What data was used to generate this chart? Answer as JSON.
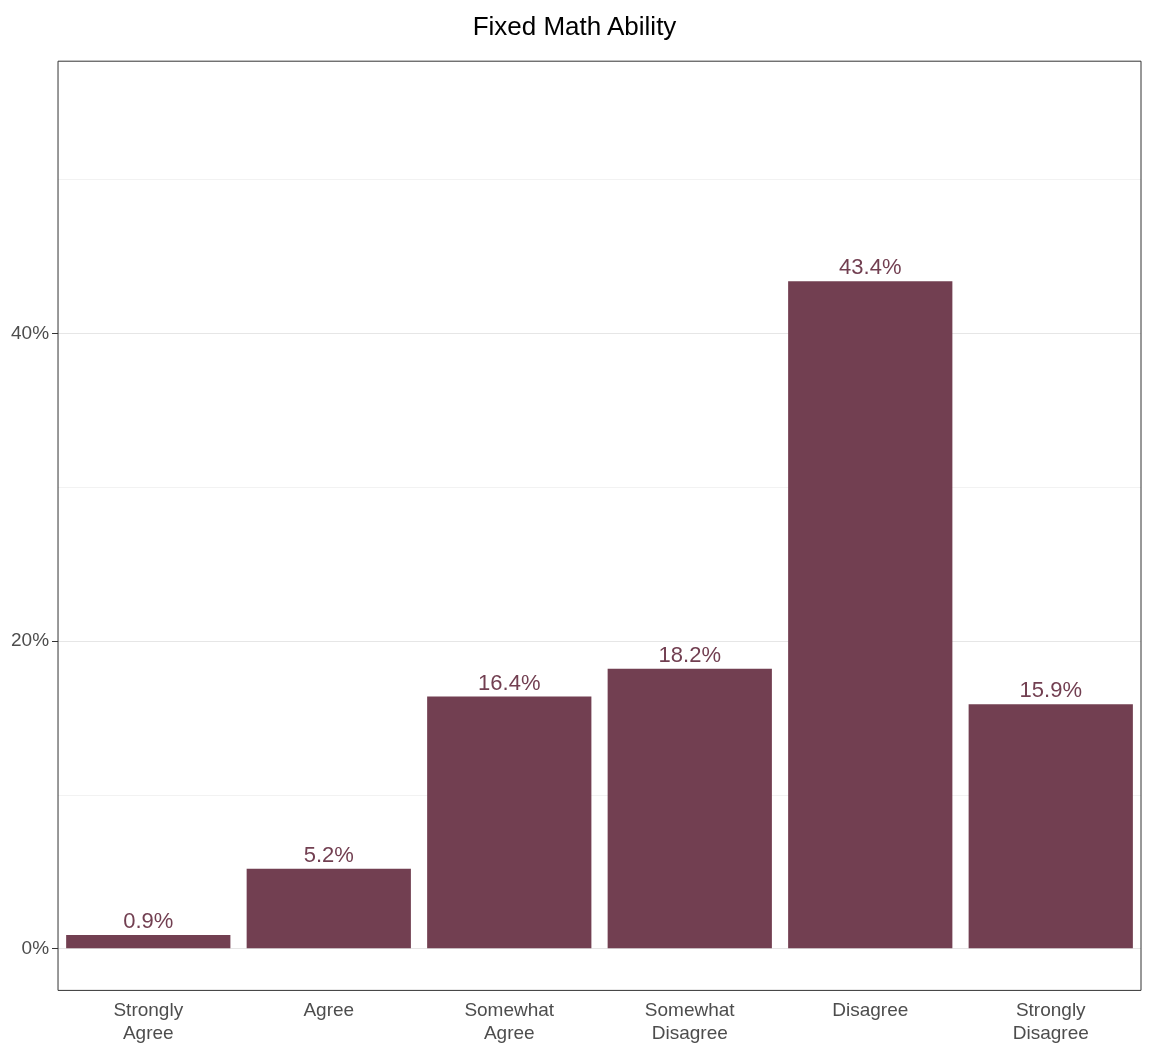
{
  "chart_data": {
    "type": "bar",
    "title": "Fixed Math Ability",
    "categories": [
      "Strongly Agree",
      "Agree",
      "Somewhat Agree",
      "Somewhat Disagree",
      "Disagree",
      "Strongly Disagree"
    ],
    "values": [
      0.9,
      5.2,
      16.4,
      18.2,
      43.4,
      15.9
    ],
    "value_labels": [
      "0.9%",
      "5.2%",
      "16.4%",
      "18.2%",
      "43.4%",
      "15.9%"
    ],
    "color": "#723f51",
    "ylim": [
      -2.7,
      57.7
    ],
    "yticks": [
      {
        "value": 0,
        "label": "0%"
      },
      {
        "value": 10,
        "label": null
      },
      {
        "value": 20,
        "label": "20%"
      },
      {
        "value": 30,
        "label": null
      },
      {
        "value": 40,
        "label": "40%"
      },
      {
        "value": 50,
        "label": null
      }
    ],
    "grid": "y"
  }
}
